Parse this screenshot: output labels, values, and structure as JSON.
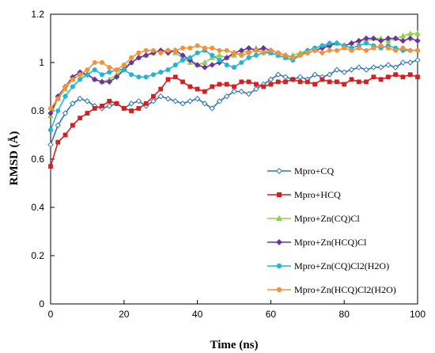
{
  "chart_data": {
    "type": "line",
    "title": "",
    "xlabel": "Time (ns)",
    "ylabel": "RMSD (Å)",
    "xlim": [
      0,
      100
    ],
    "ylim": [
      0,
      1.2
    ],
    "xticks": [
      0,
      20,
      40,
      60,
      80,
      100
    ],
    "yticks": [
      0,
      0.2,
      0.4,
      0.6,
      0.8,
      1,
      1.2
    ],
    "ytick_labels": [
      "0",
      "0.2",
      "0.4",
      "0.6",
      "0.8",
      "1",
      "1.2"
    ],
    "grid": false,
    "legend_position": "bottom-right",
    "x": [
      0,
      2,
      4,
      6,
      8,
      10,
      12,
      14,
      16,
      18,
      20,
      22,
      24,
      26,
      28,
      30,
      32,
      34,
      36,
      38,
      40,
      42,
      44,
      46,
      48,
      50,
      52,
      54,
      56,
      58,
      60,
      62,
      64,
      66,
      68,
      70,
      72,
      74,
      76,
      78,
      80,
      82,
      84,
      86,
      88,
      90,
      92,
      94,
      96,
      98,
      100
    ],
    "series": [
      {
        "name": "Mpro+CQ",
        "color": "#2e75b6",
        "marker": "open-diamond",
        "values": [
          0.66,
          0.74,
          0.79,
          0.83,
          0.85,
          0.84,
          0.82,
          0.81,
          0.82,
          0.83,
          0.81,
          0.83,
          0.84,
          0.82,
          0.84,
          0.86,
          0.85,
          0.84,
          0.83,
          0.84,
          0.85,
          0.83,
          0.81,
          0.84,
          0.86,
          0.88,
          0.88,
          0.87,
          0.89,
          0.91,
          0.93,
          0.95,
          0.94,
          0.93,
          0.94,
          0.93,
          0.95,
          0.94,
          0.95,
          0.97,
          0.96,
          0.97,
          0.98,
          0.97,
          0.98,
          0.98,
          0.99,
          0.98,
          1.0,
          1.0,
          1.01
        ]
      },
      {
        "name": "Mpro+HCQ",
        "color": "#d42020",
        "marker": "square",
        "values": [
          0.57,
          0.67,
          0.7,
          0.74,
          0.77,
          0.79,
          0.81,
          0.82,
          0.84,
          0.83,
          0.81,
          0.8,
          0.81,
          0.83,
          0.86,
          0.89,
          0.93,
          0.94,
          0.92,
          0.9,
          0.89,
          0.88,
          0.9,
          0.91,
          0.91,
          0.9,
          0.92,
          0.92,
          0.91,
          0.9,
          0.91,
          0.92,
          0.92,
          0.93,
          0.92,
          0.92,
          0.91,
          0.93,
          0.92,
          0.92,
          0.91,
          0.93,
          0.92,
          0.92,
          0.94,
          0.93,
          0.94,
          0.95,
          0.94,
          0.95,
          0.94
        ]
      },
      {
        "name": "Mpro+Zn(CQ)Cl",
        "color": "#92d050",
        "marker": "triangle",
        "values": [
          0.78,
          0.85,
          0.89,
          0.93,
          0.95,
          0.95,
          0.93,
          0.92,
          0.93,
          0.95,
          0.98,
          1.0,
          1.02,
          1.03,
          1.04,
          1.05,
          1.05,
          1.04,
          1.02,
          1.0,
          0.99,
          1.0,
          1.02,
          1.03,
          1.02,
          1.03,
          1.04,
          1.05,
          1.06,
          1.05,
          1.04,
          1.03,
          1.02,
          1.03,
          1.04,
          1.05,
          1.06,
          1.07,
          1.07,
          1.08,
          1.07,
          1.08,
          1.09,
          1.09,
          1.1,
          1.1,
          1.09,
          1.1,
          1.11,
          1.12,
          1.12
        ]
      },
      {
        "name": "Mpro+Zn(HCQ)Cl",
        "color": "#7030a0",
        "marker": "diamond",
        "values": [
          0.79,
          0.86,
          0.9,
          0.94,
          0.96,
          0.95,
          0.93,
          0.92,
          0.92,
          0.94,
          0.97,
          1.0,
          1.02,
          1.03,
          1.04,
          1.05,
          1.04,
          1.05,
          1.03,
          1.01,
          0.99,
          0.98,
          0.99,
          1.0,
          1.02,
          1.04,
          1.05,
          1.06,
          1.05,
          1.06,
          1.05,
          1.04,
          1.03,
          1.02,
          1.03,
          1.04,
          1.05,
          1.06,
          1.07,
          1.08,
          1.07,
          1.08,
          1.09,
          1.1,
          1.1,
          1.09,
          1.1,
          1.1,
          1.09,
          1.1,
          1.09
        ]
      },
      {
        "name": "Mpro+Zn(CQ)Cl2(H2O)",
        "color": "#23b5d3",
        "marker": "circle",
        "values": [
          0.72,
          0.8,
          0.86,
          0.9,
          0.93,
          0.95,
          0.97,
          0.95,
          0.96,
          0.97,
          0.97,
          0.95,
          0.94,
          0.94,
          0.95,
          0.96,
          0.97,
          0.99,
          1.01,
          1.02,
          1.04,
          1.05,
          1.03,
          1.01,
          0.99,
          0.98,
          1.0,
          1.02,
          1.03,
          1.04,
          1.04,
          1.03,
          1.02,
          1.01,
          1.03,
          1.05,
          1.06,
          1.07,
          1.08,
          1.08,
          1.07,
          1.06,
          1.07,
          1.08,
          1.07,
          1.06,
          1.07,
          1.06,
          1.05,
          1.05,
          1.05
        ]
      },
      {
        "name": "Mpro+Zn(HCQ)Cl2(H2O)",
        "color": "#f4923b",
        "marker": "circle",
        "values": [
          0.81,
          0.85,
          0.9,
          0.93,
          0.95,
          0.97,
          1.0,
          1.0,
          0.98,
          0.97,
          0.99,
          1.02,
          1.04,
          1.05,
          1.05,
          1.04,
          1.05,
          1.05,
          1.06,
          1.06,
          1.07,
          1.06,
          1.06,
          1.05,
          1.05,
          1.04,
          1.03,
          1.04,
          1.05,
          1.04,
          1.05,
          1.04,
          1.03,
          1.02,
          1.03,
          1.04,
          1.05,
          1.04,
          1.05,
          1.05,
          1.06,
          1.05,
          1.06,
          1.05,
          1.06,
          1.07,
          1.06,
          1.05,
          1.06,
          1.05,
          1.05
        ]
      }
    ]
  }
}
